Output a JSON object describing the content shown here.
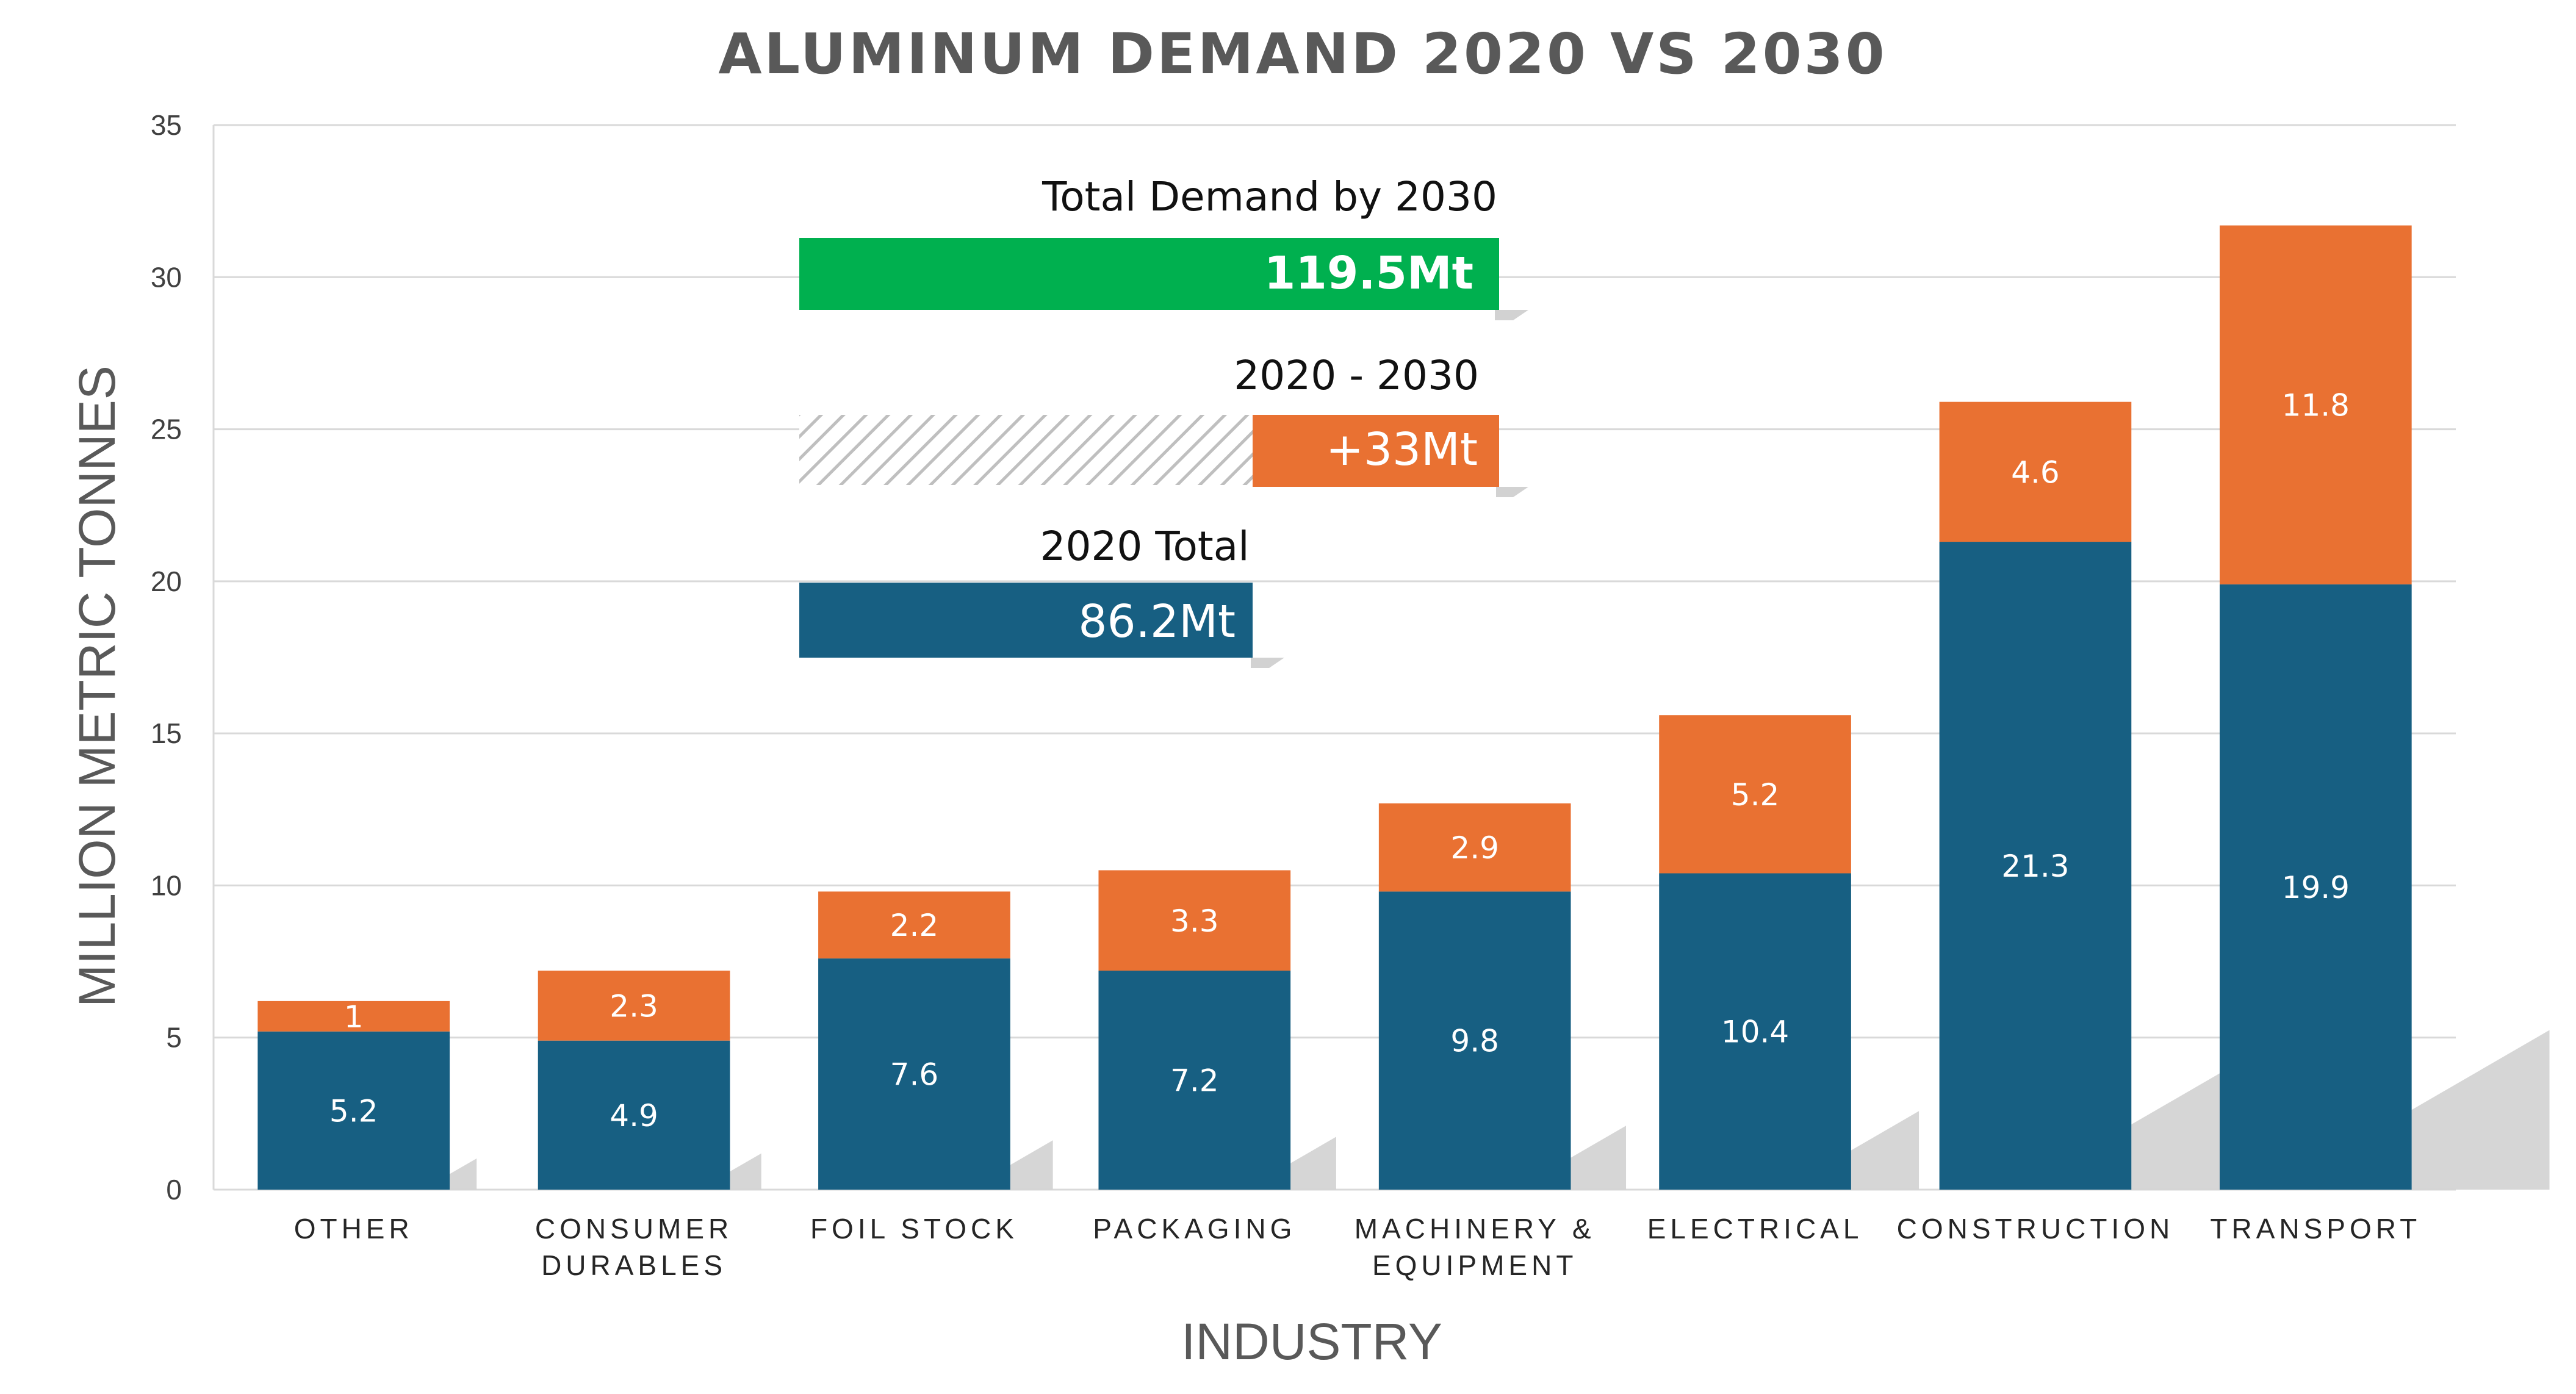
{
  "colors": {
    "base_2020": "#175F82",
    "growth_2030": "#E97132",
    "total_2030": "#00B04F",
    "grid": "#D9D9D9",
    "title": "#595959",
    "shadow": "#D2D2D2",
    "hatch": "#BFBFBF"
  },
  "chart_data": {
    "type": "bar",
    "stacked": true,
    "title": "ALUMINUM DEMAND 2020 VS 2030",
    "xlabel": "INDUSTRY",
    "ylabel": "MILLION METRIC TONNES",
    "ylim": [
      0,
      35
    ],
    "yticks": [
      "0",
      "5",
      "10",
      "15",
      "20",
      "25",
      "30",
      "35"
    ],
    "grid": true,
    "legend": "none",
    "categories": [
      [
        "OTHER"
      ],
      [
        "CONSUMER",
        "DURABLES"
      ],
      [
        "FOIL STOCK"
      ],
      [
        "PACKAGING"
      ],
      [
        "MACHINERY &",
        "EQUIPMENT"
      ],
      [
        "ELECTRICAL"
      ],
      [
        "CONSTRUCTION"
      ],
      [
        "TRANSPORT"
      ]
    ],
    "series": [
      {
        "values": [
          5.2,
          4.9,
          7.6,
          7.2,
          9.8,
          10.4,
          21.3,
          19.9
        ],
        "labels": [
          "5.2",
          "4.9",
          "7.6",
          "7.2",
          "9.8",
          "10.4",
          "21.3",
          "19.9"
        ]
      },
      {
        "values": [
          1,
          2.3,
          2.2,
          3.3,
          2.9,
          5.2,
          4.6,
          11.8
        ],
        "labels": [
          "1",
          "2.3",
          "2.2",
          "3.3",
          "2.9",
          "5.2",
          "4.6",
          "11.8"
        ]
      }
    ]
  },
  "annotations": {
    "total_2030": {
      "label": "Total Demand by 2030",
      "value": "119.5Mt",
      "amount": 119.5
    },
    "growth": {
      "label": "2020 - 2030",
      "value": "+33Mt",
      "amount": 33
    },
    "total_2020": {
      "label": "2020 Total",
      "value": "86.2Mt",
      "amount": 86.2
    }
  }
}
